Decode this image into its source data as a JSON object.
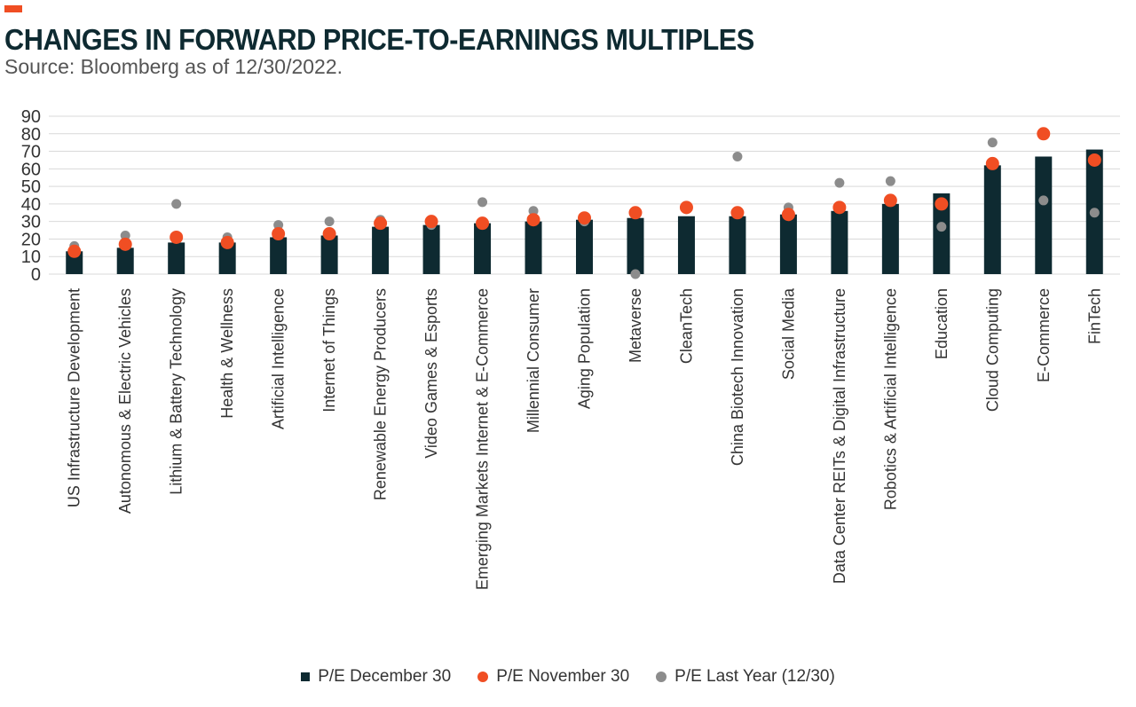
{
  "header": {
    "title": "CHANGES IN FORWARD PRICE-TO-EARNINGS MULTIPLES",
    "subtitle": "Source: Bloomberg as of 12/30/2022."
  },
  "colors": {
    "accent": "#f04e23",
    "bar": "#0e2a31",
    "dot_nov": "#f04e23",
    "dot_last_year": "#8c8c8c",
    "grid": "#d9d9d9"
  },
  "chart_data": {
    "type": "bar",
    "title": "CHANGES IN FORWARD PRICE-TO-EARNINGS MULTIPLES",
    "xlabel": "",
    "ylabel": "",
    "ylim": [
      0,
      90
    ],
    "yticks": [
      0,
      10,
      20,
      30,
      40,
      50,
      60,
      70,
      80,
      90
    ],
    "grid": true,
    "legend_position": "bottom",
    "categories": [
      "US Infrastructure Development",
      "Autonomous & Electric Vehicles",
      "Lithium & Battery Technology",
      "Health & Wellness",
      "Artificial Intelligence",
      "Internet of Things",
      "Renewable Energy Producers",
      "Video Games & Esports",
      "Emerging Markets Internet & E-Commerce",
      "Millennial Consumer",
      "Aging Population",
      "Metaverse",
      "CleanTech",
      "China Biotech Innovation",
      "Social Media",
      "Data Center REITs & Digital Infrastructure",
      "Robotics & Artificial Intelligence",
      "Education",
      "Cloud Computing",
      "E-Commerce",
      "FinTech"
    ],
    "series": [
      {
        "name": "P/E December 30",
        "kind": "bar",
        "values": [
          13,
          15,
          18,
          18,
          21,
          22,
          27,
          28,
          29,
          30,
          31,
          32,
          33,
          33,
          34,
          36,
          40,
          46,
          62,
          67,
          71
        ]
      },
      {
        "name": "P/E November 30",
        "kind": "dot",
        "values": [
          13,
          17,
          21,
          18,
          23,
          23,
          29,
          30,
          29,
          31,
          32,
          35,
          38,
          35,
          34,
          38,
          42,
          40,
          63,
          80,
          65
        ]
      },
      {
        "name": "P/E Last Year (12/30)",
        "kind": "dot",
        "values": [
          16,
          22,
          40,
          21,
          28,
          30,
          31,
          28,
          41,
          36,
          30,
          0,
          37,
          67,
          38,
          52,
          53,
          27,
          75,
          42,
          35
        ]
      }
    ]
  }
}
